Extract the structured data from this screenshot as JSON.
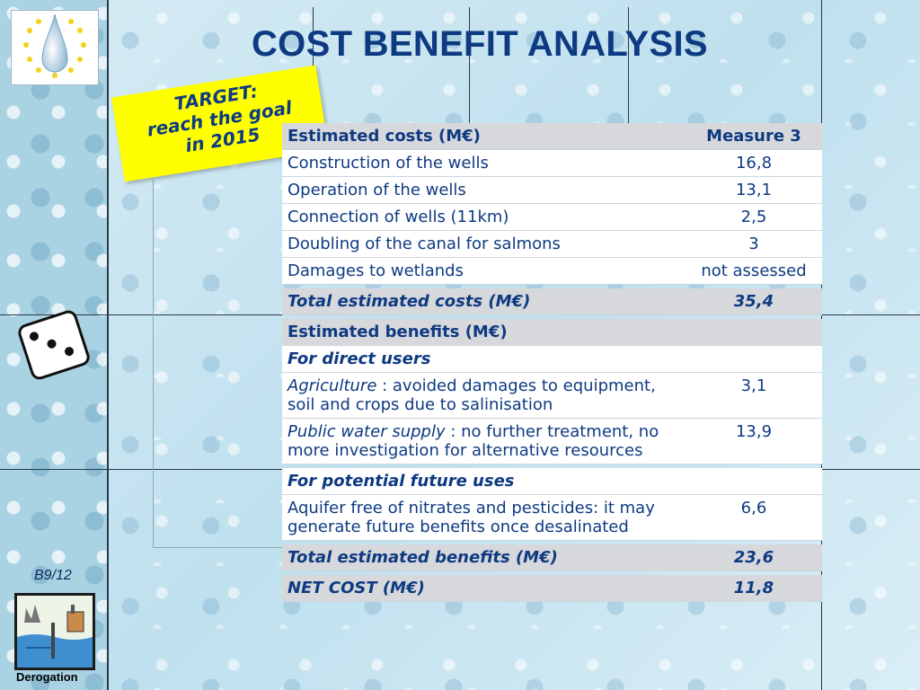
{
  "title": "COST BENEFIT ANALYSIS",
  "target": {
    "line1": "TARGET:",
    "line2": "reach the goal",
    "line3": "in 2015"
  },
  "table": {
    "cost_header": "Estimated costs (M€)",
    "measure_header": "Measure 3",
    "costs": [
      {
        "label": "Construction of the wells",
        "value": "16,8"
      },
      {
        "label": "Operation of the wells",
        "value": "13,1"
      },
      {
        "label": "Connection of wells (11km)",
        "value": "2,5"
      },
      {
        "label": "Doubling of the canal for salmons",
        "value": "3"
      },
      {
        "label": "Damages to wetlands",
        "value": "not assessed"
      }
    ],
    "total_costs": {
      "label": "Total estimated costs (M€)",
      "value": "35,4"
    },
    "benefits_header": "Estimated benefits (M€)",
    "direct_users": "For direct users",
    "agriculture": {
      "italic": "Agriculture",
      "text": " : avoided damages to equipment, soil and crops due to salinisation",
      "value": "3,1"
    },
    "public_water": {
      "italic": "Public water supply",
      "text": " : no further treatment, no more investigation for alternative resources",
      "value": "13,9"
    },
    "future_uses": "For potential future uses",
    "aquifer": {
      "text": "Aquifer free of nitrates and pesticides: it may generate future benefits once desalinated",
      "value": "6,6"
    },
    "total_benefits": {
      "label": "Total estimated benefits (M€)",
      "value": "23,6"
    },
    "net_cost": {
      "label": "NET COST (M€)",
      "value": "11,8"
    }
  },
  "page_code": "B9/12",
  "derogation_label": "Derogation",
  "colors": {
    "text_blue": "#0e3a82",
    "target_yellow": "#ffff00",
    "header_grey": "#d6d8dc"
  },
  "icons": [
    "water-drop-eu-stars-icon",
    "dice-icon",
    "derogation-illustration"
  ]
}
